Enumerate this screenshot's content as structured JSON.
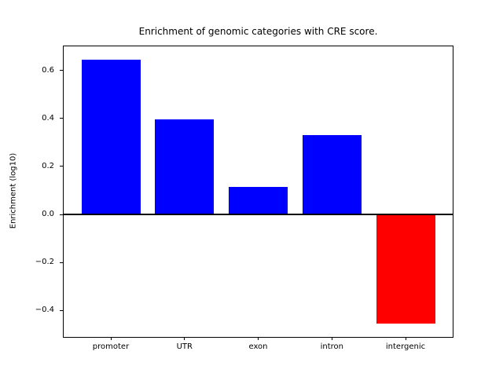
{
  "title": "Enrichment of genomic categories with CRE score.",
  "chart_data": {
    "type": "bar",
    "title": "Enrichment of genomic categories with CRE score.",
    "xlabel": "",
    "ylabel": "Enrichment (log10)",
    "categories": [
      "promoter",
      "UTR",
      "exon",
      "intron",
      "intergenic"
    ],
    "values": [
      0.645,
      0.395,
      0.115,
      0.33,
      -0.455
    ],
    "positive_color": "#0000ff",
    "negative_color": "#ff0000",
    "axis_color": "#000000",
    "background_color": "#ffffff",
    "bar_width": 0.8,
    "xlim": [
      -0.64,
      4.64
    ],
    "ylim": [
      -0.51,
      0.7
    ],
    "yticks": [
      0.6,
      0.4,
      0.2,
      0.0,
      -0.2,
      -0.4
    ],
    "ytick_labels": [
      "0.6",
      "0.4",
      "0.2",
      "0.0",
      "−0.2",
      "−0.4"
    ],
    "grid": false,
    "zero_line": true,
    "legend": "none"
  }
}
